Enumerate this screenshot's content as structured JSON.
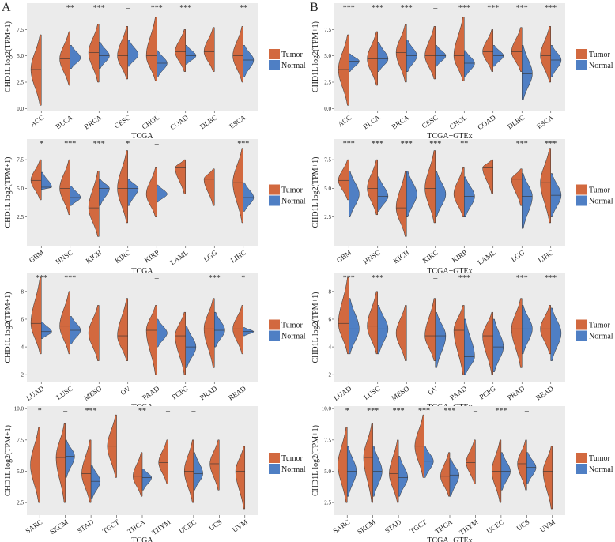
{
  "panel_labels": [
    "A",
    "B"
  ],
  "chart_data": [
    {
      "type": "violin",
      "ylabel": "CHD1L log2(TPM+1)",
      "xlabel": "TCGA",
      "categories": [
        "ACC",
        "BLCA",
        "BRCA",
        "CESC",
        "CHOL",
        "COAD",
        "DLBC",
        "ESCA"
      ],
      "significance": [
        null,
        "**",
        "***",
        "–",
        "***",
        "***",
        null,
        "**"
      ],
      "ylim": [
        -0.2,
        10
      ],
      "yticks": [
        {
          "value": 0,
          "label": "0.0"
        },
        2.5,
        {
          "value": 5,
          "label": "5.0"
        },
        7.5
      ],
      "series": [
        {
          "name": "Tumor",
          "color": "#d2693f",
          "values": [
            3.7,
            4.7,
            5.3,
            5.0,
            5.0,
            5.4,
            5.4,
            5.0
          ],
          "low": [
            0.3,
            2.2,
            2.5,
            2.8,
            2.6,
            3.5,
            3.5,
            2.5
          ],
          "high": [
            7.0,
            7.3,
            8.0,
            7.8,
            8.7,
            7.5,
            7.7,
            7.8
          ]
        },
        {
          "name": "Normal",
          "color": "#4f7fc4",
          "values": [
            null,
            4.8,
            5.0,
            5.1,
            4.3,
            5.0,
            null,
            4.6
          ],
          "low": [
            null,
            3.8,
            3.8,
            4.0,
            3.0,
            4.2,
            null,
            3.0
          ],
          "high": [
            null,
            6.0,
            6.3,
            6.5,
            5.5,
            6.0,
            null,
            6.0
          ]
        }
      ]
    },
    {
      "type": "violin",
      "ylabel": "CHD1L log2(TPM+1)",
      "xlabel": "TCGA",
      "categories": [
        "GBM",
        "HNSC",
        "KICH",
        "KIRC",
        "KIRP",
        "LAML",
        "LGG",
        "LIHC"
      ],
      "significance": [
        "*",
        "***",
        "***",
        "*",
        "–",
        null,
        null,
        "***"
      ],
      "ylim": [
        0,
        9.3
      ],
      "yticks": [
        2.5,
        {
          "value": 5,
          "label": "5.0"
        },
        7.5
      ],
      "series": [
        {
          "name": "Tumor",
          "color": "#d2693f",
          "values": [
            5.7,
            5.0,
            3.3,
            5.0,
            4.5,
            6.8,
            5.8,
            5.5
          ],
          "low": [
            4.0,
            2.7,
            0.8,
            2.0,
            2.5,
            4.5,
            3.5,
            2.0
          ],
          "high": [
            7.5,
            7.5,
            6.5,
            8.3,
            6.8,
            7.5,
            6.7,
            8.5
          ]
        },
        {
          "name": "Normal",
          "color": "#4f7fc4",
          "values": [
            5.1,
            4.2,
            5.0,
            5.0,
            4.5,
            null,
            null,
            4.2
          ],
          "low": [
            4.9,
            3.5,
            3.5,
            3.5,
            3.8,
            null,
            null,
            3.0
          ],
          "high": [
            6.4,
            5.2,
            5.8,
            5.8,
            5.3,
            null,
            null,
            5.5
          ]
        }
      ]
    },
    {
      "type": "violin",
      "ylabel": "CHD1L log2(TPM+1)",
      "xlabel": "TCGA",
      "categories": [
        "LUAD",
        "LUSC",
        "MESO",
        "OV",
        "PAAD",
        "PCPG",
        "PRAD",
        "READ"
      ],
      "significance": [
        "***",
        "***",
        null,
        null,
        "–",
        null,
        "***",
        "*"
      ],
      "ylim": [
        1.5,
        9.3
      ],
      "yticks": [
        2,
        4,
        6,
        8
      ],
      "series": [
        {
          "name": "Tumor",
          "color": "#d2693f",
          "values": [
            5.7,
            5.5,
            5.0,
            4.8,
            5.2,
            4.8,
            5.3,
            5.3
          ],
          "low": [
            3.5,
            3.5,
            3.0,
            3.0,
            2.0,
            2.0,
            2.5,
            3.5
          ],
          "high": [
            9.0,
            8.0,
            7.0,
            7.5,
            7.0,
            6.5,
            7.5,
            7.0
          ]
        },
        {
          "name": "Normal",
          "color": "#4f7fc4",
          "values": [
            5.1,
            5.2,
            null,
            null,
            5.0,
            4.0,
            5.2,
            5.1
          ],
          "low": [
            4.6,
            4.2,
            null,
            null,
            4.0,
            2.5,
            4.0,
            4.8
          ],
          "high": [
            5.8,
            6.2,
            null,
            null,
            6.0,
            5.5,
            6.5,
            5.4
          ]
        }
      ]
    },
    {
      "type": "violin",
      "ylabel": "CHD1L log2(TPM+1)",
      "xlabel": "TCGA",
      "categories": [
        "SARC",
        "SKCM",
        "STAD",
        "TGCT",
        "THCA",
        "THYM",
        "UCEC",
        "UCS",
        "UVM"
      ],
      "significance": [
        "*",
        "–",
        "***",
        null,
        "**",
        "–",
        "–",
        null,
        null
      ],
      "ylim": [
        1.5,
        10.2
      ],
      "yticks": [
        2.5,
        {
          "value": 5,
          "label": "5.0"
        },
        7.5,
        {
          "value": 10,
          "label": "10.0"
        }
      ],
      "series": [
        {
          "name": "Tumor",
          "color": "#d2693f",
          "values": [
            5.5,
            6.1,
            4.8,
            7.0,
            4.6,
            5.7,
            5.0,
            5.6,
            5.0
          ],
          "low": [
            2.5,
            2.5,
            2.5,
            4.5,
            3.0,
            4.0,
            2.5,
            3.5,
            2.0
          ],
          "high": [
            8.5,
            8.8,
            7.5,
            9.5,
            6.5,
            7.5,
            7.5,
            7.5,
            7.0
          ]
        },
        {
          "name": "Normal",
          "color": "#4f7fc4",
          "values": [
            null,
            6.2,
            4.2,
            null,
            4.5,
            null,
            4.8,
            null,
            null
          ],
          "low": [
            null,
            4.5,
            2.8,
            null,
            3.5,
            null,
            3.5,
            null,
            null
          ],
          "high": [
            null,
            7.5,
            5.5,
            null,
            5.2,
            null,
            6.5,
            null,
            null
          ]
        }
      ]
    },
    {
      "type": "violin",
      "ylabel": "CHD1L log2(TPM+1)",
      "xlabel": "TCGA+GTEx",
      "categories": [
        "ACC",
        "BLCA",
        "BRCA",
        "CESC",
        "CHOL",
        "COAD",
        "DLBC",
        "ESCA"
      ],
      "significance": [
        "***",
        "***",
        "***",
        "–",
        "***",
        "***",
        "***",
        "***"
      ],
      "ylim": [
        -0.2,
        10
      ],
      "yticks": [
        {
          "value": 0,
          "label": "0.0"
        },
        2.5,
        {
          "value": 5,
          "label": "5.0"
        },
        7.5
      ],
      "series": [
        {
          "name": "Tumor",
          "color": "#d2693f",
          "values": [
            3.7,
            4.7,
            5.3,
            5.0,
            5.0,
            5.4,
            5.4,
            5.0
          ],
          "low": [
            0.3,
            2.2,
            2.5,
            2.8,
            2.6,
            3.5,
            3.5,
            2.5
          ],
          "high": [
            7.0,
            7.3,
            8.0,
            7.8,
            8.7,
            7.5,
            7.7,
            7.8
          ]
        },
        {
          "name": "Normal",
          "color": "#4f7fc4",
          "values": [
            4.5,
            4.7,
            5.0,
            5.0,
            4.3,
            5.0,
            3.3,
            4.6
          ],
          "low": [
            3.5,
            3.5,
            3.5,
            4.0,
            3.0,
            4.0,
            0.8,
            3.0
          ],
          "high": [
            5.2,
            6.3,
            6.5,
            6.0,
            5.5,
            6.0,
            6.0,
            6.0
          ]
        }
      ]
    },
    {
      "type": "violin",
      "ylabel": "CHD1L log2(TPM+1)",
      "xlabel": "TCGA+GTEx",
      "categories": [
        "GBM",
        "HNSC",
        "KICH",
        "KIRC",
        "KIRP",
        "LAML",
        "LGG",
        "LIHC"
      ],
      "significance": [
        "***",
        "***",
        "***",
        "***",
        "**",
        null,
        "***",
        "***"
      ],
      "ylim": [
        0,
        9.3
      ],
      "yticks": [
        2.5,
        {
          "value": 5,
          "label": "5.0"
        },
        7.5
      ],
      "series": [
        {
          "name": "Tumor",
          "color": "#d2693f",
          "values": [
            5.7,
            5.0,
            3.3,
            5.0,
            4.5,
            6.8,
            5.8,
            5.5
          ],
          "low": [
            4.0,
            2.7,
            0.8,
            2.0,
            2.5,
            4.5,
            3.5,
            2.0
          ],
          "high": [
            7.5,
            7.5,
            6.5,
            8.3,
            6.8,
            7.5,
            6.7,
            8.5
          ]
        },
        {
          "name": "Normal",
          "color": "#4f7fc4",
          "values": [
            4.5,
            4.3,
            4.5,
            4.5,
            4.3,
            null,
            4.3,
            4.4
          ],
          "low": [
            2.5,
            3.0,
            2.5,
            2.5,
            2.5,
            null,
            1.5,
            2.5
          ],
          "high": [
            6.5,
            6.0,
            6.5,
            6.5,
            6.0,
            null,
            6.3,
            6.3
          ]
        }
      ]
    },
    {
      "type": "violin",
      "ylabel": "CHD1L log2(TPM+1)",
      "xlabel": "TCGA+GTEx",
      "categories": [
        "LUAD",
        "LUSC",
        "MESO",
        "OV",
        "PAAD",
        "PCPG",
        "PRAD",
        "READ"
      ],
      "significance": [
        "***",
        "***",
        null,
        "–",
        "***",
        null,
        "***",
        "***"
      ],
      "ylim": [
        1.5,
        9.3
      ],
      "yticks": [
        2,
        4,
        6,
        8
      ],
      "series": [
        {
          "name": "Tumor",
          "color": "#d2693f",
          "values": [
            5.7,
            5.5,
            5.0,
            4.8,
            5.2,
            4.8,
            5.3,
            5.3
          ],
          "low": [
            3.5,
            3.5,
            3.0,
            3.0,
            2.0,
            2.0,
            2.5,
            3.5
          ],
          "high": [
            9.0,
            8.0,
            7.0,
            7.5,
            7.0,
            6.5,
            7.5,
            7.0
          ]
        },
        {
          "name": "Normal",
          "color": "#4f7fc4",
          "values": [
            5.3,
            5.3,
            null,
            4.8,
            3.3,
            4.0,
            5.3,
            5.0
          ],
          "low": [
            3.5,
            3.5,
            null,
            2.5,
            2.0,
            2.2,
            3.5,
            3.0
          ],
          "high": [
            7.5,
            7.0,
            null,
            6.5,
            6.0,
            6.0,
            7.0,
            6.8
          ]
        }
      ]
    },
    {
      "type": "violin",
      "ylabel": "CHD1L log2(TPM+1)",
      "xlabel": "TCGA+GTEx",
      "categories": [
        "SARC",
        "SKCM",
        "STAD",
        "TGCT",
        "THCA",
        "THYM",
        "UCEC",
        "UCS",
        "UVM"
      ],
      "significance": [
        "*",
        "***",
        "***",
        "***",
        "***",
        "–",
        "***",
        "–",
        null
      ],
      "ylim": [
        1.5,
        10.2
      ],
      "yticks": [
        2.5,
        {
          "value": 5,
          "label": "5.0"
        },
        7.5,
        {
          "value": 10,
          "label": "10.0"
        }
      ],
      "series": [
        {
          "name": "Tumor",
          "color": "#d2693f",
          "values": [
            5.5,
            6.1,
            4.8,
            7.0,
            4.6,
            5.7,
            5.0,
            5.6,
            5.0
          ],
          "low": [
            2.5,
            2.5,
            2.5,
            4.5,
            3.0,
            4.0,
            2.5,
            3.5,
            2.0
          ],
          "high": [
            8.5,
            8.8,
            7.5,
            9.5,
            6.5,
            7.5,
            7.5,
            7.5,
            7.0
          ]
        },
        {
          "name": "Normal",
          "color": "#4f7fc4",
          "values": [
            5.0,
            5.0,
            4.5,
            5.8,
            4.7,
            null,
            5.0,
            5.3,
            null
          ],
          "low": [
            3.0,
            3.0,
            3.0,
            4.5,
            3.0,
            null,
            3.5,
            4.0,
            null
          ],
          "high": [
            7.0,
            7.0,
            6.2,
            7.0,
            6.0,
            null,
            6.5,
            6.5,
            null
          ]
        }
      ]
    }
  ]
}
